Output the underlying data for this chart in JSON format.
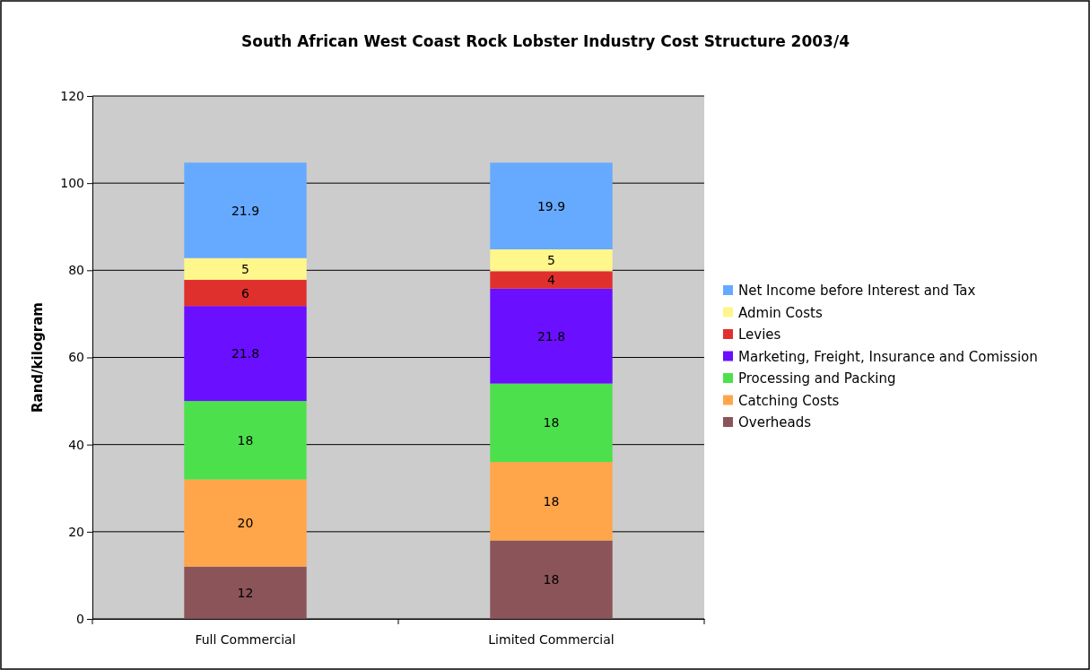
{
  "chart_data": {
    "type": "bar",
    "title": "South African West Coast Rock Lobster Industry Cost Structure 2003/4",
    "ylabel": "Rand/kilogram",
    "categories": [
      "Full Commercial",
      "Limited Commercial"
    ],
    "stacked": true,
    "data_labels": true,
    "grid": "y",
    "legend": "right",
    "ylim": [
      0,
      120
    ],
    "yticks": [
      0,
      20,
      40,
      60,
      80,
      100,
      120
    ],
    "series": [
      {
        "name": "Overheads",
        "color": "#8b5458",
        "values": [
          12,
          18
        ]
      },
      {
        "name": "Catching Costs",
        "color": "#ffa54a",
        "values": [
          20,
          18
        ]
      },
      {
        "name": "Processing and Packing",
        "color": "#4ce14c",
        "values": [
          18,
          18
        ]
      },
      {
        "name": "Marketing, Freight, Insurance and Comission",
        "color": "#6a0fff",
        "values": [
          21.8,
          21.8
        ]
      },
      {
        "name": "Levies",
        "color": "#e0302e",
        "values": [
          6,
          4
        ]
      },
      {
        "name": "Admin Costs",
        "color": "#fff68c",
        "values": [
          5,
          5
        ]
      },
      {
        "name": "Net Income before Interest and Tax",
        "color": "#66aaff",
        "values": [
          21.9,
          19.9
        ]
      }
    ]
  }
}
